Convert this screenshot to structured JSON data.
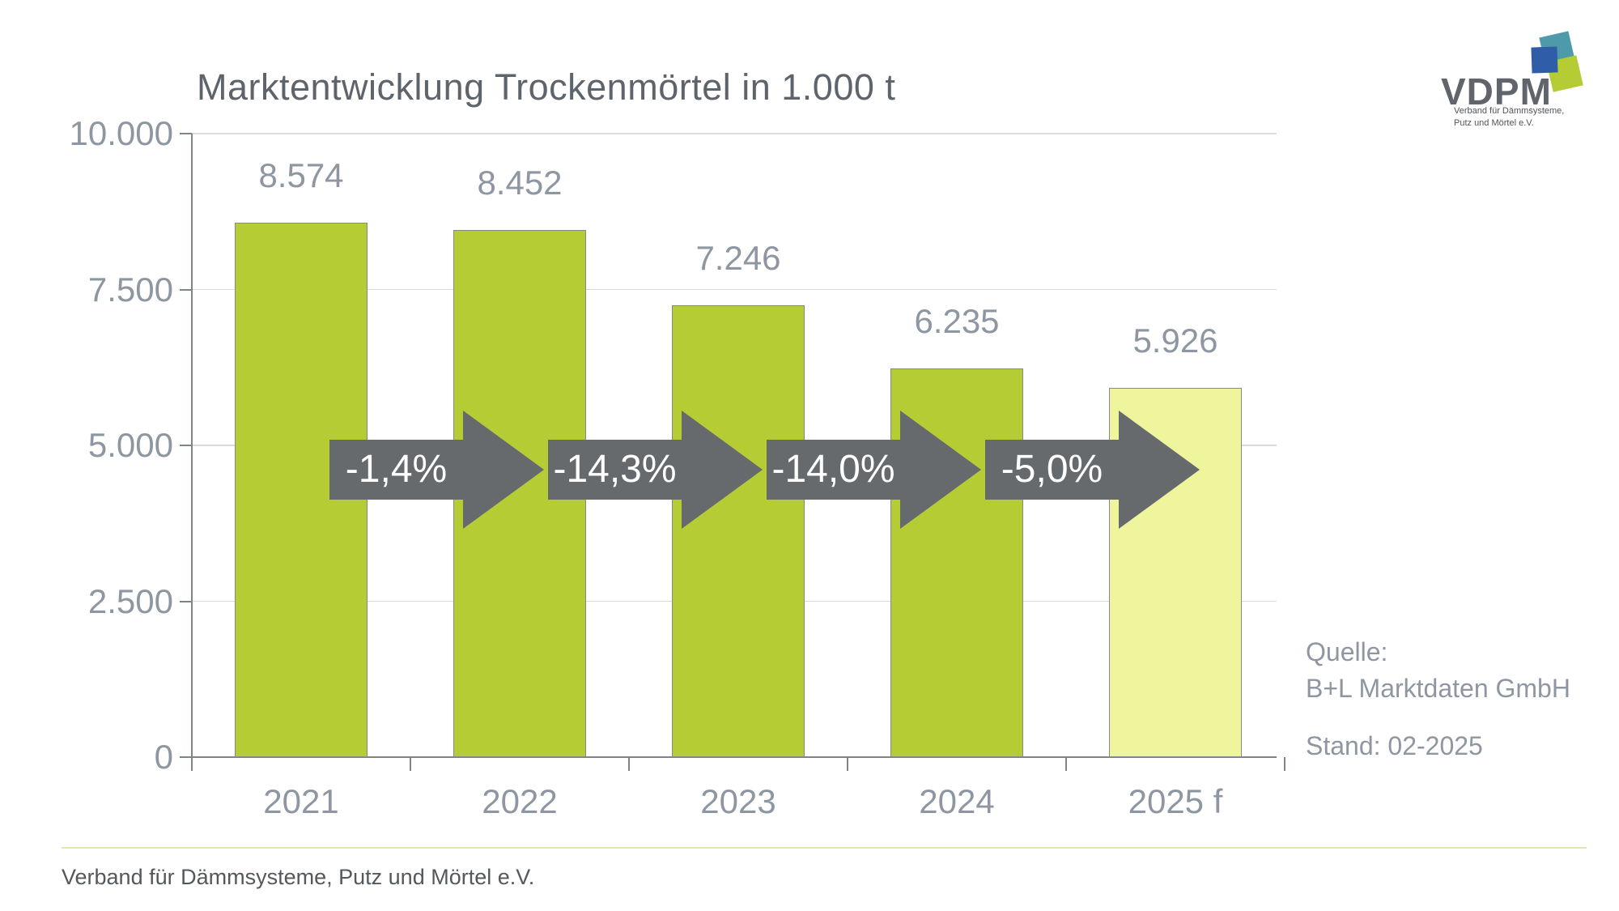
{
  "title": "Marktentwicklung Trockenmörtel in 1.000 t",
  "logo": {
    "wordmark": "VDPM",
    "tagline_line1": "Verband für Dämmsysteme,",
    "tagline_line2": "Putz und Mörtel e.V.",
    "square_colors": {
      "blue": "#2f5da8",
      "teal": "#4e9aab",
      "green": "#b5cc35"
    }
  },
  "source": {
    "label": "Quelle:",
    "name": "B+L Marktdaten GmbH",
    "stand": "Stand: 02-2025"
  },
  "footer": "Verband für Dämmsysteme, Putz und Mörtel e.V.",
  "chart_data": {
    "type": "bar",
    "title": "Marktentwicklung Trockenmörtel in 1.000 t",
    "categories": [
      "2021",
      "2022",
      "2023",
      "2024",
      "2025 f"
    ],
    "values": [
      8574,
      8452,
      7246,
      6235,
      5926
    ],
    "value_labels": [
      "8.574",
      "8.452",
      "7.246",
      "6.235",
      "5.926"
    ],
    "changes": [
      "-1,4%",
      "-14,3%",
      "-14,0%",
      "-5,0%"
    ],
    "y_ticks": [
      {
        "value": 10000,
        "label": "10.000"
      },
      {
        "value": 7500,
        "label": "7.500"
      },
      {
        "value": 5000,
        "label": "5.000"
      },
      {
        "value": 2500,
        "label": "2.500"
      },
      {
        "value": 0,
        "label": "0"
      }
    ],
    "ylim": [
      0,
      10000
    ],
    "xlabel": "",
    "ylabel": "",
    "grid": true,
    "legend_position": "none",
    "bar_color": "#b5cc35",
    "forecast_bar_color": "#eef59d",
    "bar_border_color": "#85898c",
    "arrow_color": "#666a6d",
    "label_color": "#8e97a1"
  }
}
